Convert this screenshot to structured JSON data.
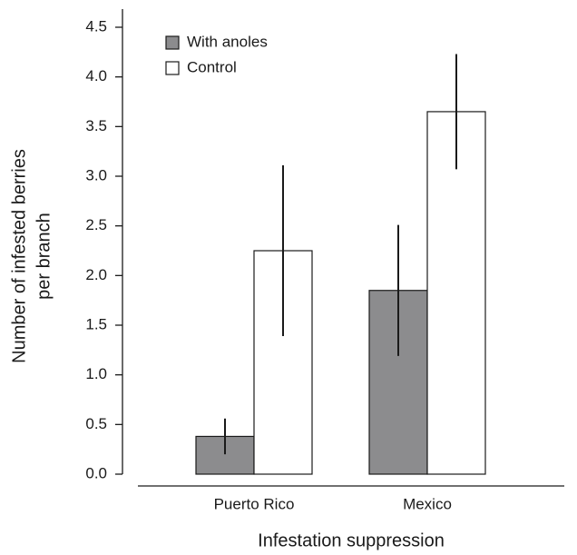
{
  "chart_data": {
    "type": "bar",
    "x_label": "Infestation suppression",
    "y_label": [
      "Number of infested berries",
      "per branch"
    ],
    "categories": [
      "Puerto Rico",
      "Mexico"
    ],
    "series": [
      {
        "name": "With anoles",
        "color": "#8c8c8e",
        "values": [
          0.38,
          1.85
        ],
        "errors": [
          0.18,
          0.66
        ]
      },
      {
        "name": "Control",
        "color": "#ffffff",
        "values": [
          2.25,
          3.65
        ],
        "errors": [
          0.86,
          0.58
        ]
      }
    ],
    "ylim": [
      0,
      4.5
    ],
    "yticks": [
      {
        "value": 0,
        "label": "0.0"
      },
      0.5,
      {
        "value": 1,
        "label": "1.0"
      },
      1.5,
      {
        "value": 2,
        "label": "2.0"
      },
      2.5,
      {
        "value": 3,
        "label": "3.0"
      },
      3.5,
      {
        "value": 4,
        "label": "4.0"
      },
      4.5
    ],
    "legend": "upper-left"
  }
}
